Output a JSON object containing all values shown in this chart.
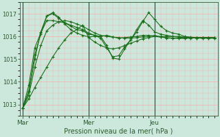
{
  "bg_color": "#cce8dd",
  "grid_color": "#ffaaaa",
  "line_color": "#1a6e1a",
  "xlabel": "Pression niveau de la mer( hPa )",
  "ylim": [
    1012.5,
    1017.5
  ],
  "yticks": [
    1013,
    1014,
    1015,
    1016,
    1017
  ],
  "xtick_labels": [
    "Mar",
    "Mer",
    "Jeu"
  ],
  "vline_x": [
    0,
    11,
    22
  ],
  "n_points": 33,
  "series": [
    [
      1012.85,
      1013.25,
      1013.75,
      1014.2,
      1014.65,
      1015.1,
      1015.5,
      1015.85,
      1016.15,
      1016.3,
      1016.5,
      1015.95,
      1015.75,
      1015.6,
      1015.5,
      1015.45,
      1015.5,
      1015.6,
      1015.7,
      1015.8,
      1015.9,
      1015.95,
      1016.0,
      1016.0,
      1016.0,
      1016.0,
      1016.0,
      1015.97,
      1015.95,
      1015.93,
      1015.92,
      1015.92,
      1015.92
    ],
    [
      1012.85,
      1013.6,
      1015.0,
      1016.2,
      1016.9,
      1017.05,
      1016.85,
      1016.55,
      1016.3,
      1016.15,
      1016.05,
      1015.98,
      1016.0,
      1016.0,
      1016.05,
      1015.98,
      1015.92,
      1015.95,
      1015.98,
      1016.0,
      1016.05,
      1016.05,
      1016.0,
      1015.97,
      1015.95,
      1015.93,
      1015.92,
      1015.92,
      1015.93,
      1015.95,
      1015.95,
      1015.95,
      1015.95
    ],
    [
      1012.85,
      1013.85,
      1015.5,
      1016.15,
      1016.7,
      1016.7,
      1016.65,
      1016.6,
      1016.5,
      1016.4,
      1016.3,
      1016.15,
      1016.05,
      1015.92,
      1015.5,
      1015.1,
      1015.15,
      1015.55,
      1015.85,
      1016.2,
      1016.65,
      1017.05,
      1016.75,
      1016.45,
      1016.25,
      1016.15,
      1016.1,
      1016.0,
      1015.97,
      1015.95,
      1015.95,
      1015.95,
      1015.95
    ],
    [
      1012.85,
      1013.55,
      1015.2,
      1016.1,
      1016.9,
      1017.0,
      1016.8,
      1016.6,
      1016.45,
      1016.3,
      1016.25,
      1016.1,
      1016.05,
      1016.0,
      1015.6,
      1015.05,
      1015.0,
      1015.45,
      1015.85,
      1016.3,
      1016.7,
      1016.5,
      1016.2,
      1016.1,
      1016.05,
      1016.0,
      1015.97,
      1015.95,
      1015.95,
      1015.95,
      1015.95,
      1015.95,
      1015.95
    ],
    [
      1012.85,
      1013.4,
      1014.65,
      1015.6,
      1016.25,
      1016.5,
      1016.65,
      1016.7,
      1016.65,
      1016.55,
      1016.45,
      1016.3,
      1016.15,
      1016.05,
      1016.0,
      1015.97,
      1015.95,
      1015.93,
      1015.92,
      1015.95,
      1015.98,
      1016.0,
      1016.05,
      1015.98,
      1015.93,
      1015.92,
      1015.92,
      1015.92,
      1015.93,
      1015.93,
      1015.93,
      1015.93,
      1015.93
    ]
  ]
}
